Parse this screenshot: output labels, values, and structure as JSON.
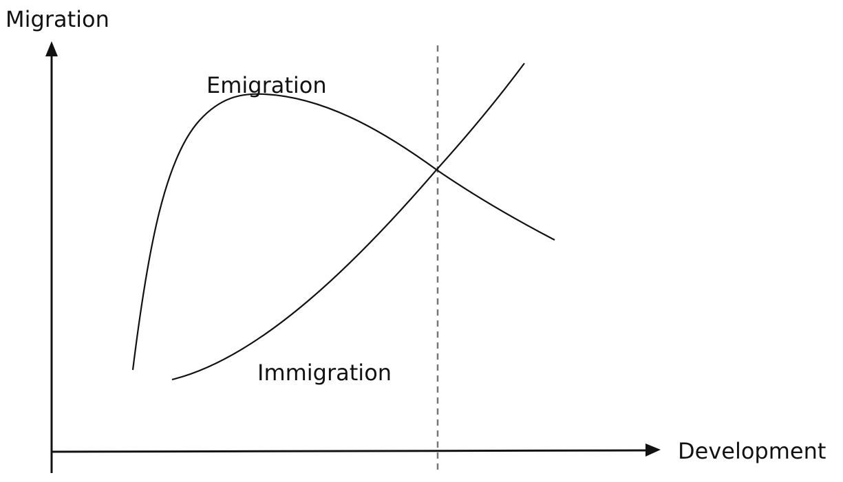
{
  "diagram": {
    "y_axis_label": "Migration",
    "x_axis_label": "Development",
    "curves": [
      {
        "name": "Emigration",
        "shape": "inverted-U (rises steeply, peaks, then declines)"
      },
      {
        "name": "Immigration",
        "shape": "increasing, convex"
      }
    ],
    "marker": "dashed vertical line through the intersection of the two curves",
    "colors": {
      "lines": "#111111",
      "dashed_marker": "#777777",
      "background": "#ffffff"
    }
  }
}
